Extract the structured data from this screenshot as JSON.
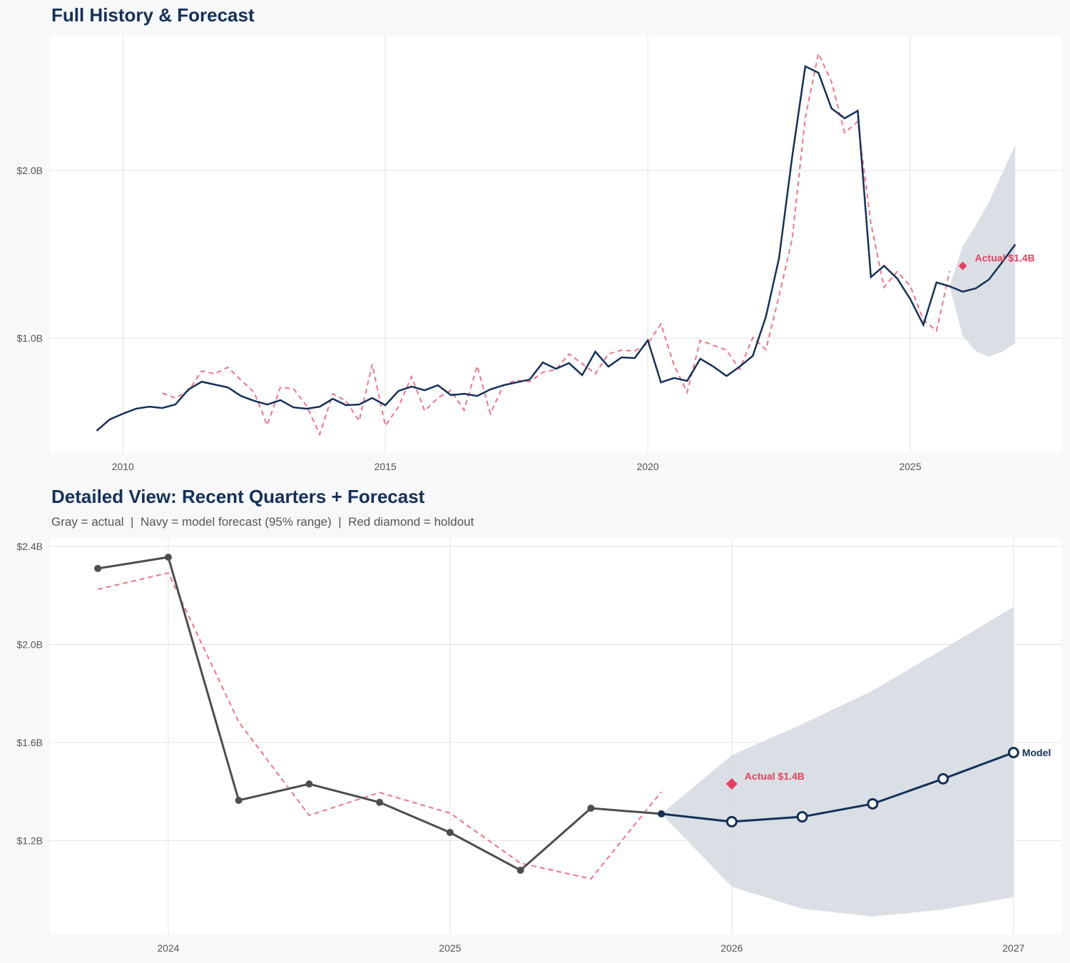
{
  "colors": {
    "navy": "#14305a",
    "actual_gray": "#4d4d4d",
    "fitted_red": "#ef7489",
    "holdout_red": "#e5405e",
    "band": "#d8dde4",
    "background": "#f7f8fa",
    "plot_bg": "#ffffff",
    "grid": "#e2e2e2"
  },
  "chart_data": [
    {
      "type": "line",
      "title": "Full History & Forecast",
      "xlim": [
        2008.61,
        2027.88
      ],
      "ylim": [
        0.315,
        2.804
      ],
      "x_ticks": [
        2010,
        2015,
        2020,
        2025
      ],
      "x_tick_labels": [
        "2010",
        "2015",
        "2020",
        "2025"
      ],
      "y_ticks": [
        1.0,
        2.0
      ],
      "y_tick_labels": [
        "$1.0B",
        "$2.0B"
      ],
      "grid": true,
      "series": [
        {
          "role": "actual",
          "style": "solid-navy",
          "x_start": 2009.5,
          "x_step": 0.25,
          "values": [
            0.447,
            0.515,
            0.549,
            0.579,
            0.591,
            0.583,
            0.604,
            0.694,
            0.74,
            0.723,
            0.706,
            0.655,
            0.626,
            0.604,
            0.63,
            0.587,
            0.579,
            0.591,
            0.638,
            0.6,
            0.604,
            0.643,
            0.6,
            0.685,
            0.711,
            0.689,
            0.719,
            0.66,
            0.668,
            0.655,
            0.694,
            0.719,
            0.736,
            0.753,
            0.855,
            0.817,
            0.851,
            0.779,
            0.919,
            0.83,
            0.885,
            0.881,
            0.987,
            0.736,
            0.762,
            0.745,
            0.877,
            0.83,
            0.774,
            0.83,
            0.894,
            1.128,
            1.477,
            2.081,
            2.621,
            2.583,
            2.37,
            2.311,
            2.356,
            1.364,
            1.431,
            1.356,
            1.233,
            1.079,
            1.332,
            1.309
          ]
        },
        {
          "role": "forecast",
          "style": "solid-navy",
          "x_start": 2025.75,
          "x_step": 0.25,
          "values": [
            1.309,
            1.277,
            1.297,
            1.35,
            1.452,
            1.559
          ]
        },
        {
          "role": "fitted",
          "style": "dashed-red",
          "x_start": 2010.75,
          "x_step": 0.25,
          "values": [
            0.672,
            0.643,
            0.685,
            0.804,
            0.787,
            0.826,
            0.749,
            0.677,
            0.481,
            0.706,
            0.698,
            0.596,
            0.426,
            0.668,
            0.626,
            0.506,
            0.843,
            0.477,
            0.591,
            0.77,
            0.566,
            0.643,
            0.689,
            0.57,
            0.834,
            0.549,
            0.719,
            0.749,
            0.74,
            0.796,
            0.813,
            0.906,
            0.847,
            0.787,
            0.906,
            0.928,
            0.923,
            0.966,
            1.085,
            0.838,
            0.677,
            0.987,
            0.957,
            0.928,
            0.813,
            1.004,
            0.932,
            1.251,
            1.591,
            2.315,
            2.698,
            2.528,
            2.225,
            2.292,
            1.684,
            1.303,
            1.396,
            1.312,
            1.108,
            1.044,
            1.399
          ]
        }
      ],
      "band": {
        "x": [
          2025.75,
          2026.0,
          2026.25,
          2026.5,
          2026.75,
          2027.0
        ],
        "lower": [
          1.309,
          1.012,
          0.922,
          0.89,
          0.919,
          0.969
        ],
        "upper": [
          1.309,
          1.548,
          1.675,
          1.812,
          1.981,
          2.153
        ]
      },
      "holdout": {
        "x": 2026.0,
        "value": 1.431,
        "label": "Actual $1.4B"
      }
    },
    {
      "type": "line",
      "title": "Detailed View: Recent Quarters + Forecast",
      "subtitle": "Gray = actual  |  Navy = model forecast (95% range)  |  Red diamond = holdout",
      "xlim": [
        2023.58,
        2027.17
      ],
      "ylim": [
        0.817,
        2.432
      ],
      "x_ticks": [
        2024,
        2025,
        2026,
        2027
      ],
      "x_tick_labels": [
        "2024",
        "2025",
        "2026",
        "2027"
      ],
      "y_ticks": [
        1.2,
        1.6,
        2.0,
        2.4
      ],
      "y_tick_labels": [
        "$1.2B",
        "$1.6B",
        "$2.0B",
        "$2.4B"
      ],
      "grid": true,
      "series": [
        {
          "role": "actual",
          "style": "solid-gray-markers",
          "x_start": 2023.75,
          "x_step": 0.25,
          "values": [
            2.31,
            2.356,
            1.364,
            1.431,
            1.356,
            1.233,
            1.079,
            1.332,
            1.309
          ]
        },
        {
          "role": "forecast",
          "style": "solid-navy-open-markers",
          "x_start": 2025.75,
          "x_step": 0.25,
          "values": [
            1.309,
            1.277,
            1.297,
            1.35,
            1.452,
            1.559
          ],
          "end_label": "Model"
        },
        {
          "role": "fitted",
          "style": "dashed-red",
          "x_start": 2023.75,
          "x_step": 0.25,
          "values": [
            2.225,
            2.292,
            1.684,
            1.303,
            1.396,
            1.312,
            1.108,
            1.044,
            1.399
          ]
        }
      ],
      "band": {
        "x": [
          2025.75,
          2026.0,
          2026.25,
          2026.5,
          2026.75,
          2027.0
        ],
        "lower": [
          1.309,
          1.012,
          0.922,
          0.89,
          0.919,
          0.969
        ],
        "upper": [
          1.309,
          1.548,
          1.675,
          1.812,
          1.981,
          2.153
        ]
      },
      "holdout": {
        "x": 2026.0,
        "value": 1.431,
        "label": "Actual $1.4B"
      }
    }
  ]
}
